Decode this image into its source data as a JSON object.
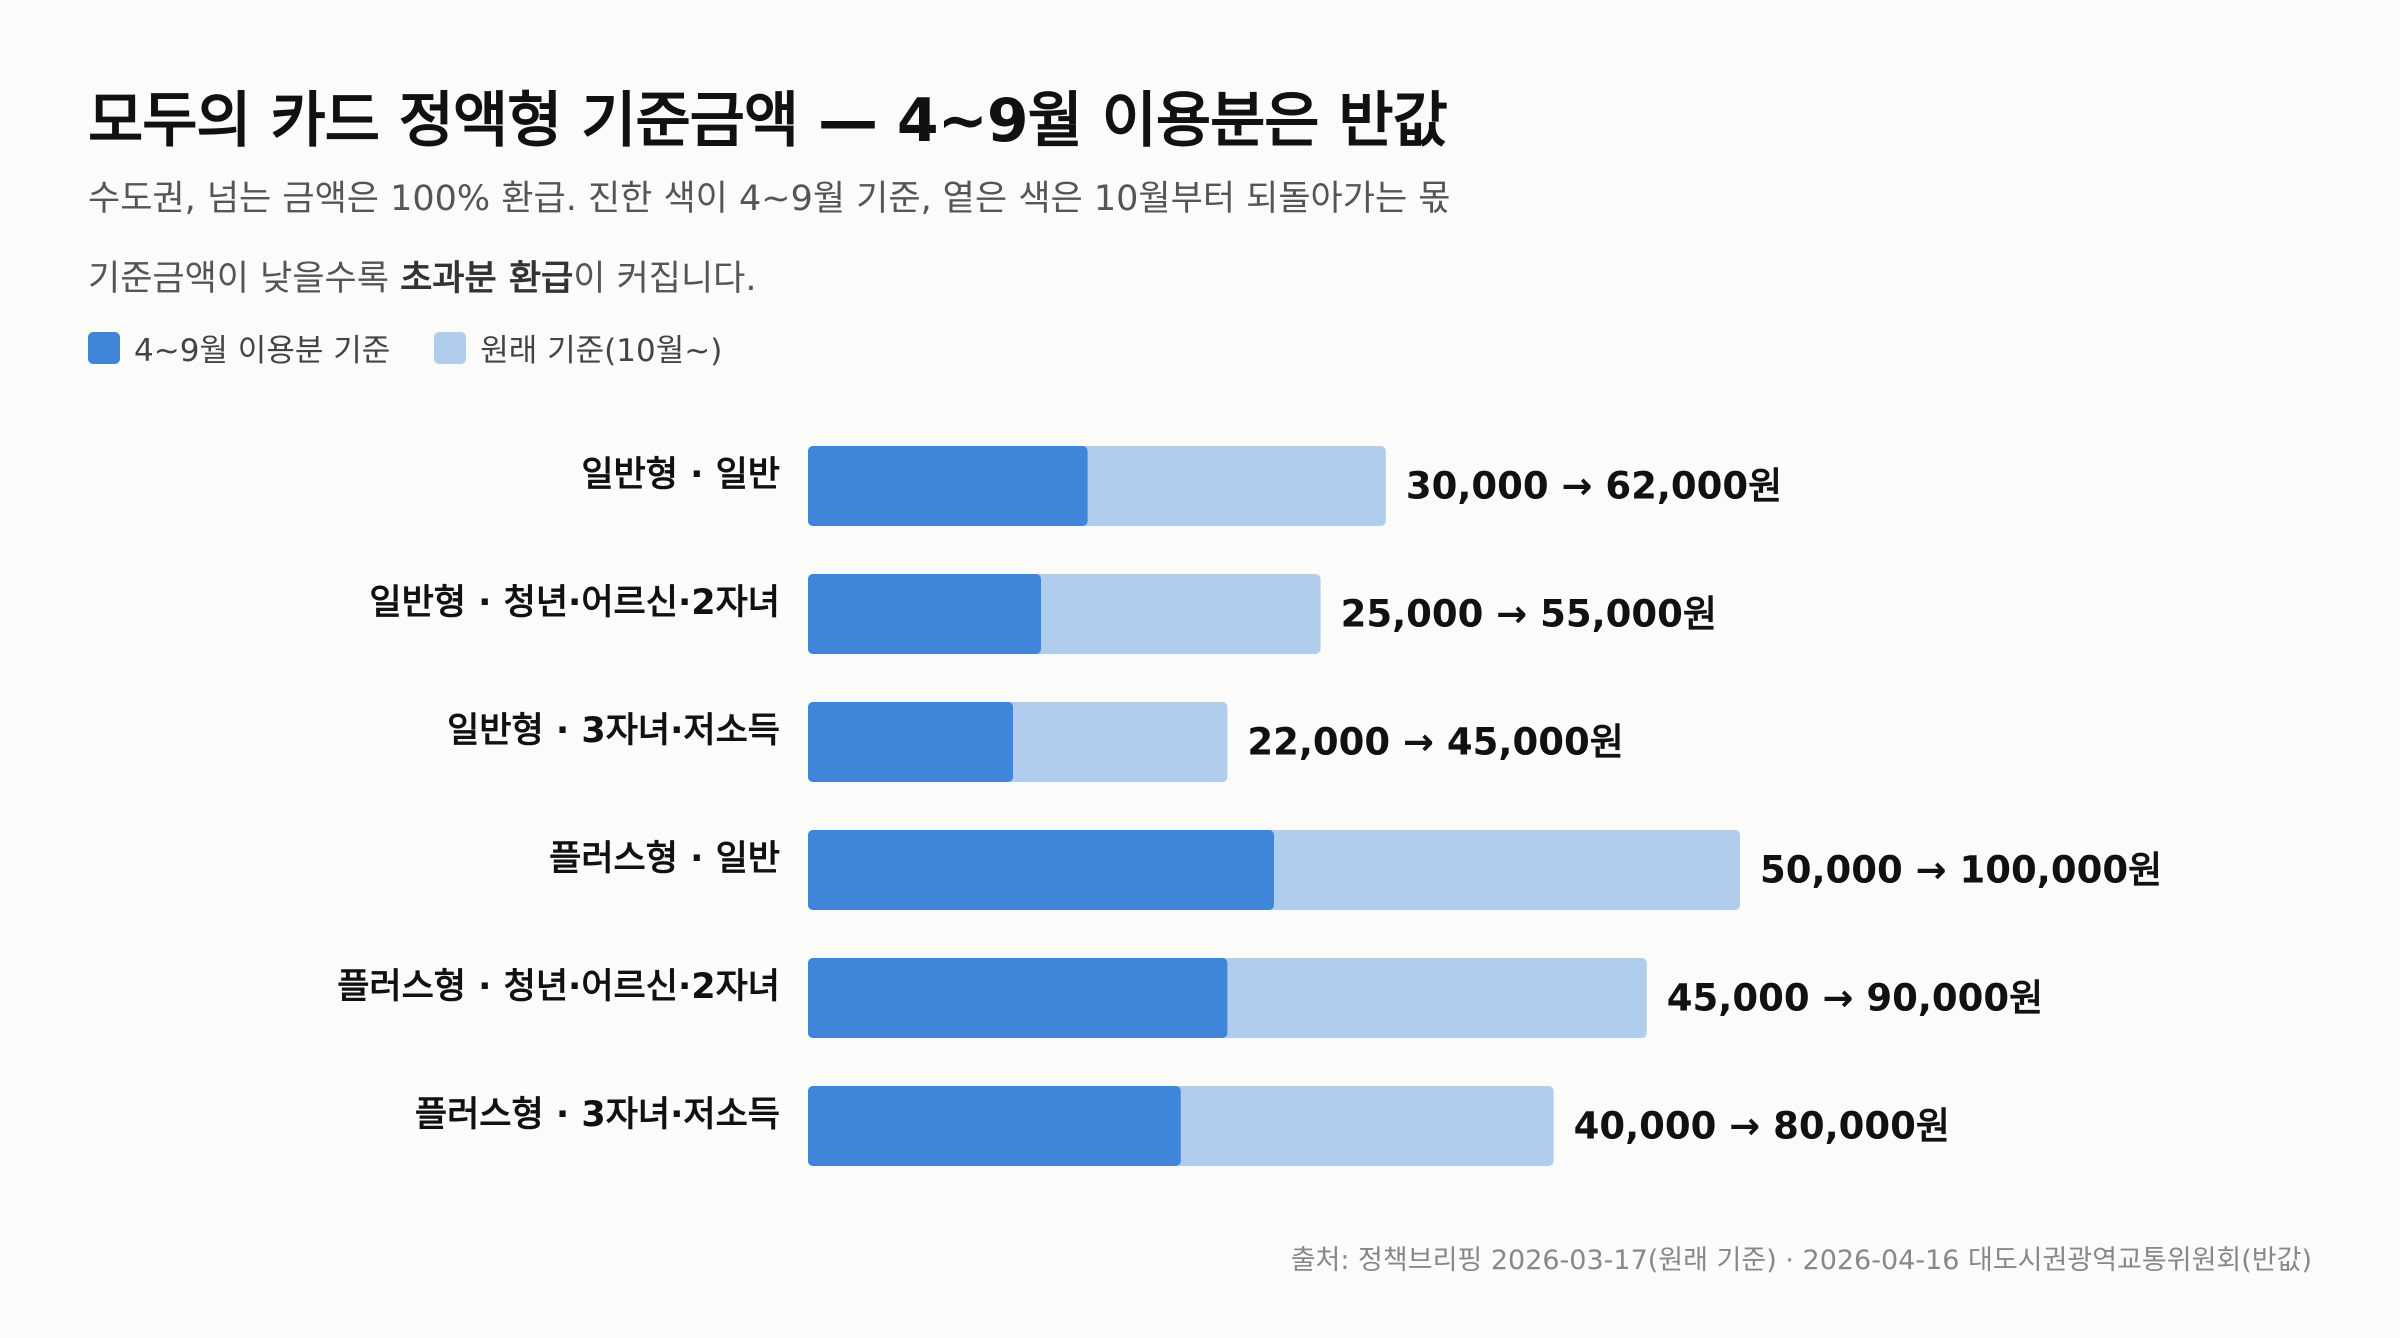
{
  "title": "모두의 카드 정액형 기준금액 — 4~9월 이용분은 반값",
  "subtitle_line1": "수도권, 넘는 금액은 100% 환급. 진한 색이 4~9월 기준, 옅은 색은 10월부터 되돌아가는 몫",
  "subtitle_line2": {
    "prefix": "기준금액이 낮을수록 ",
    "bold": "초과분 환급",
    "suffix": "이 커집니다."
  },
  "legend": [
    {
      "label": "4~9월 이용분 기준",
      "color": "#3f86db"
    },
    {
      "label": "원래 기준(10월~)",
      "color": "#b0cdee"
    }
  ],
  "source": "출처: 정책브리핑 2026-03-17(원래 기준) · 2026-04-16 대도시권광역교통위원회(반값)",
  "chart_data": {
    "type": "bar",
    "orientation": "horizontal",
    "stacked_overlay": true,
    "categories": [
      "일반형 · 일반",
      "일반형 · 청년·어르신·2자녀",
      "일반형 · 3자녀·저소득",
      "플러스형 · 일반",
      "플러스형 · 청년·어르신·2자녀",
      "플러스형 · 3자녀·저소득"
    ],
    "series": [
      {
        "name": "4~9월 이용분 기준",
        "color": "#3f86db",
        "values": [
          30000,
          25000,
          22000,
          50000,
          45000,
          40000
        ]
      },
      {
        "name": "원래 기준(10월~)",
        "color": "#b0cdee",
        "values": [
          62000,
          55000,
          45000,
          100000,
          90000,
          80000
        ]
      }
    ],
    "data_labels": [
      "30,000 → 62,000원",
      "25,000 → 55,000원",
      "22,000 → 45,000원",
      "50,000 → 100,000원",
      "45,000 → 90,000원",
      "40,000 → 80,000원"
    ],
    "xlim": [
      0,
      100000
    ],
    "grid": false
  }
}
